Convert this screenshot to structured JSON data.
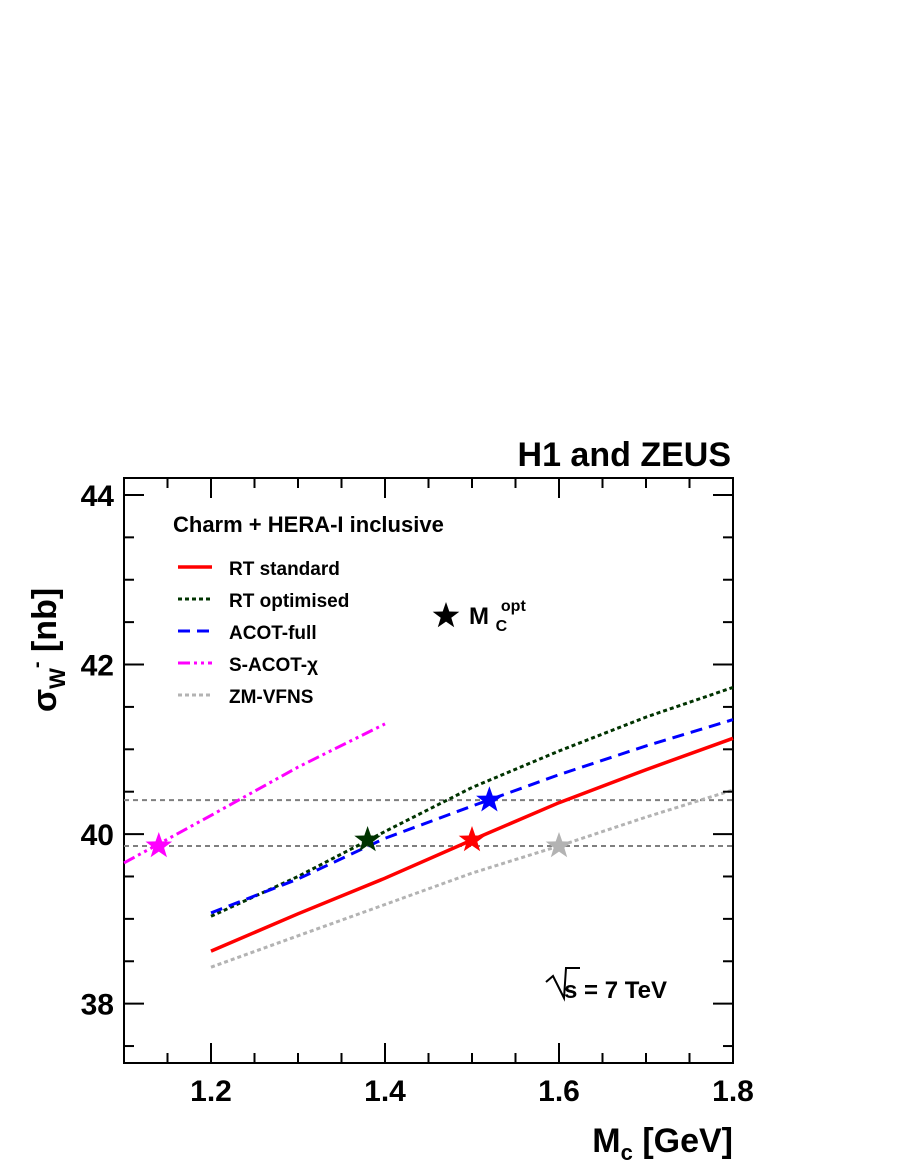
{
  "header": {
    "collaboration": "H1 and ZEUS"
  },
  "chart_data": {
    "type": "line",
    "title": "H1 and ZEUS",
    "annotation": "Charm + HERA-I inclusive",
    "energy_label": {
      "sqrt": "s",
      "rest": " = 7 TeV"
    },
    "xlabel": {
      "main": "M",
      "sub": "c",
      "rest": " [GeV]"
    },
    "ylabel": {
      "main": "σ",
      "sub": "W",
      "sup": "-",
      "rest": " [nb]"
    },
    "xlim": [
      1.1,
      1.8
    ],
    "ylim": [
      37.3,
      44.2
    ],
    "x_ticks": [
      1.2,
      1.4,
      1.6,
      1.8
    ],
    "x_tick_labels": [
      "1.2",
      "1.4",
      "1.6",
      "1.8"
    ],
    "y_ticks": [
      38,
      40,
      42,
      44
    ],
    "y_tick_labels": [
      "38",
      "40",
      "42",
      "44"
    ],
    "legend_position": "top-left",
    "marker_legend": {
      "main": "M",
      "sub": "C",
      "sup": "opt"
    },
    "reference_lines": [
      {
        "y": 40.4,
        "color": "#7f7f7f"
      },
      {
        "y": 39.86,
        "color": "#7f7f7f"
      }
    ],
    "series": [
      {
        "name": "RT standard",
        "color": "#ff0000",
        "style": "solid",
        "x": [
          1.2,
          1.3,
          1.4,
          1.5,
          1.6,
          1.7,
          1.8
        ],
        "y": [
          38.62,
          39.06,
          39.48,
          39.93,
          40.37,
          40.76,
          41.13
        ],
        "optimum": {
          "x": 1.5,
          "y": 39.93
        }
      },
      {
        "name": "RT optimised",
        "color": "#003300",
        "style": "dotted",
        "x": [
          1.2,
          1.3,
          1.4,
          1.5,
          1.6,
          1.7,
          1.8
        ],
        "y": [
          39.03,
          39.5,
          40.03,
          40.55,
          40.98,
          41.38,
          41.73
        ],
        "optimum": {
          "x": 1.38,
          "y": 39.93
        }
      },
      {
        "name": "ACOT-full",
        "color": "#0000ff",
        "style": "dashed",
        "x": [
          1.2,
          1.3,
          1.4,
          1.5,
          1.6,
          1.7,
          1.8
        ],
        "y": [
          39.07,
          39.47,
          39.95,
          40.33,
          40.7,
          41.04,
          41.35
        ],
        "optimum": {
          "x": 1.52,
          "y": 40.4
        }
      },
      {
        "name": "S-ACOT-χ",
        "color": "#ff00ff",
        "style": "dashdotdot",
        "x": [
          1.1,
          1.2,
          1.3,
          1.4
        ],
        "y": [
          39.66,
          40.22,
          40.79,
          41.3
        ],
        "optimum": {
          "x": 1.14,
          "y": 39.86
        }
      },
      {
        "name": "ZM-VFNS",
        "color": "#b3b3b3",
        "style": "dotted",
        "x": [
          1.2,
          1.3,
          1.4,
          1.5,
          1.6,
          1.7,
          1.8
        ],
        "y": [
          38.43,
          38.8,
          39.17,
          39.54,
          39.86,
          40.2,
          40.52
        ],
        "optimum": {
          "x": 1.6,
          "y": 39.86
        }
      }
    ]
  }
}
